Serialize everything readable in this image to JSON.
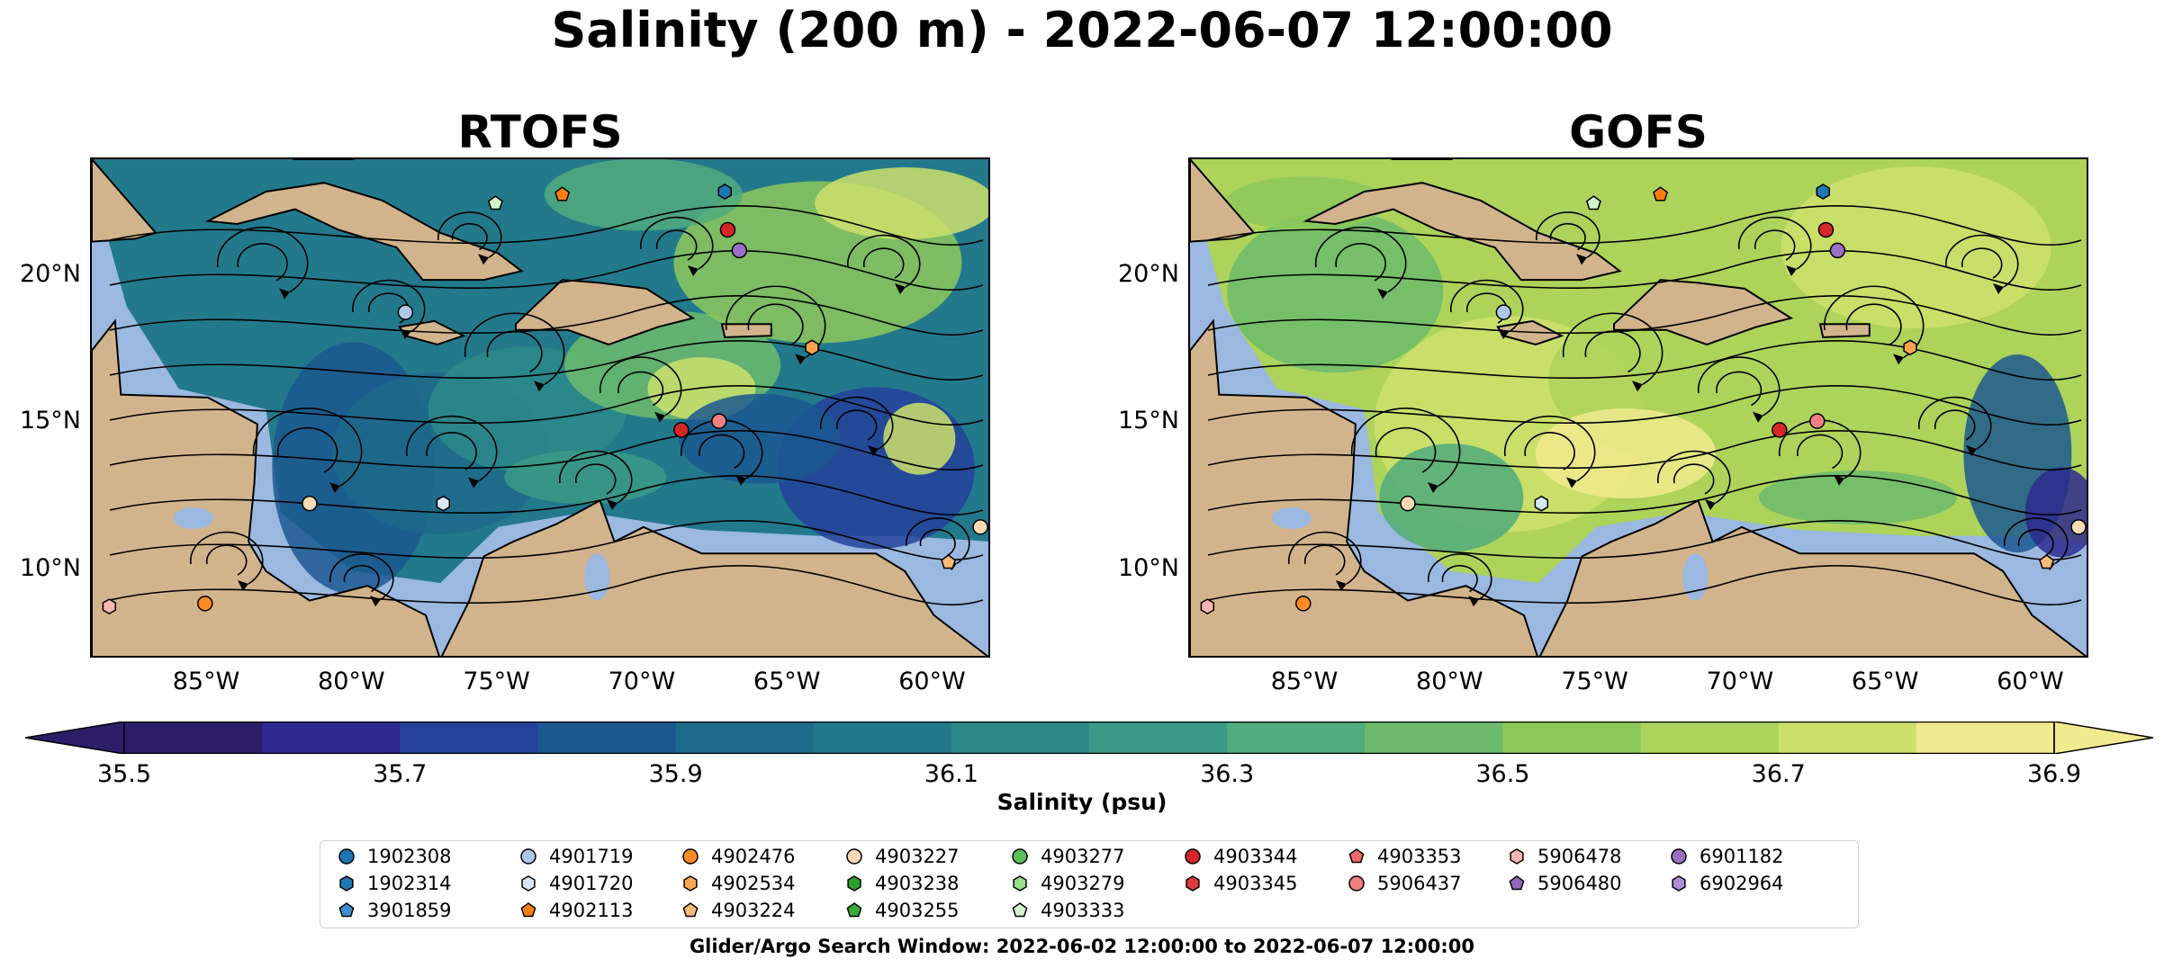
{
  "title": "Salinity (200 m) - 2022-06-07 12:00:00",
  "panels": [
    {
      "title": "RTOFS",
      "variant": "rtofs"
    },
    {
      "title": "GOFS",
      "variant": "gofs"
    }
  ],
  "map": {
    "lon_range": [
      -89,
      -58
    ],
    "lat_range": [
      7,
      24
    ],
    "lat_ticks": [
      {
        "value": 20,
        "label": "20°N"
      },
      {
        "value": 15,
        "label": "15°N"
      },
      {
        "value": 10,
        "label": "10°N"
      }
    ],
    "lon_ticks": [
      {
        "value": -85,
        "label": "85°W"
      },
      {
        "value": -80,
        "label": "80°W"
      },
      {
        "value": -75,
        "label": "75°W"
      },
      {
        "value": -70,
        "label": "70°W"
      },
      {
        "value": -65,
        "label": "65°W"
      },
      {
        "value": -60,
        "label": "60°W"
      }
    ],
    "land_color": "#d2b48c",
    "shelf_color": "#9bb8e0"
  },
  "colorbar": {
    "label": "Salinity (psu)",
    "min": 35.5,
    "max": 36.9,
    "step": 0.1,
    "ticks": [
      "35.5",
      "35.7",
      "35.9",
      "36.1",
      "36.3",
      "36.5",
      "36.7",
      "36.9"
    ],
    "colors": [
      "#2c1e66",
      "#2d2a8f",
      "#24419a",
      "#1b5890",
      "#1d6a8a",
      "#23798c",
      "#2c8a89",
      "#3b9a86",
      "#50ac7c",
      "#6cbb6c",
      "#8dc85b",
      "#add35b",
      "#cde06c",
      "#f2ea8e"
    ]
  },
  "legend": {
    "columns": [
      [
        {
          "id": "1902308",
          "marker": "circle",
          "color": "#1f77b4"
        },
        {
          "id": "1902314",
          "marker": "hexagon",
          "color": "#1f77b4"
        },
        {
          "id": "3901859",
          "marker": "pentagon",
          "color": "#3f8fd0"
        }
      ],
      [
        {
          "id": "4901719",
          "marker": "circle",
          "color": "#aec7e8"
        },
        {
          "id": "4901720",
          "marker": "hexagon",
          "color": "#d6e8f7"
        },
        {
          "id": "4902113",
          "marker": "pentagon",
          "color": "#ff7f0e"
        }
      ],
      [
        {
          "id": "4902476",
          "marker": "circle",
          "color": "#ff8c22"
        },
        {
          "id": "4902534",
          "marker": "hexagon",
          "color": "#ffa54f"
        },
        {
          "id": "4903224",
          "marker": "pentagon",
          "color": "#ffbb78"
        }
      ],
      [
        {
          "id": "4903227",
          "marker": "circle",
          "color": "#fdd9b5"
        },
        {
          "id": "4903238",
          "marker": "hexagon",
          "color": "#2ca02c"
        },
        {
          "id": "4903255",
          "marker": "pentagon",
          "color": "#3aab3a"
        }
      ],
      [
        {
          "id": "4903277",
          "marker": "circle",
          "color": "#5cbf5c"
        },
        {
          "id": "4903279",
          "marker": "hexagon",
          "color": "#98df8a"
        },
        {
          "id": "4903333",
          "marker": "pentagon",
          "color": "#d4f5cc"
        }
      ],
      [
        {
          "id": "4903344",
          "marker": "circle",
          "color": "#d62728"
        },
        {
          "id": "4903345",
          "marker": "hexagon",
          "color": "#e03b3c"
        }
      ],
      [
        {
          "id": "4903353",
          "marker": "pentagon",
          "color": "#f06a6b"
        },
        {
          "id": "5906437",
          "marker": "circle",
          "color": "#f08080"
        }
      ],
      [
        {
          "id": "5906478",
          "marker": "hexagon",
          "color": "#f7b6b2"
        },
        {
          "id": "5906480",
          "marker": "pentagon",
          "color": "#9467bd"
        }
      ],
      [
        {
          "id": "6901182",
          "marker": "circle",
          "color": "#9b6fc4"
        },
        {
          "id": "6902964",
          "marker": "hexagon",
          "color": "#b08fd6"
        }
      ]
    ]
  },
  "footer": "Glider/Argo Search Window: 2022-06-02 12:00:00 to 2022-06-07 12:00:00"
}
